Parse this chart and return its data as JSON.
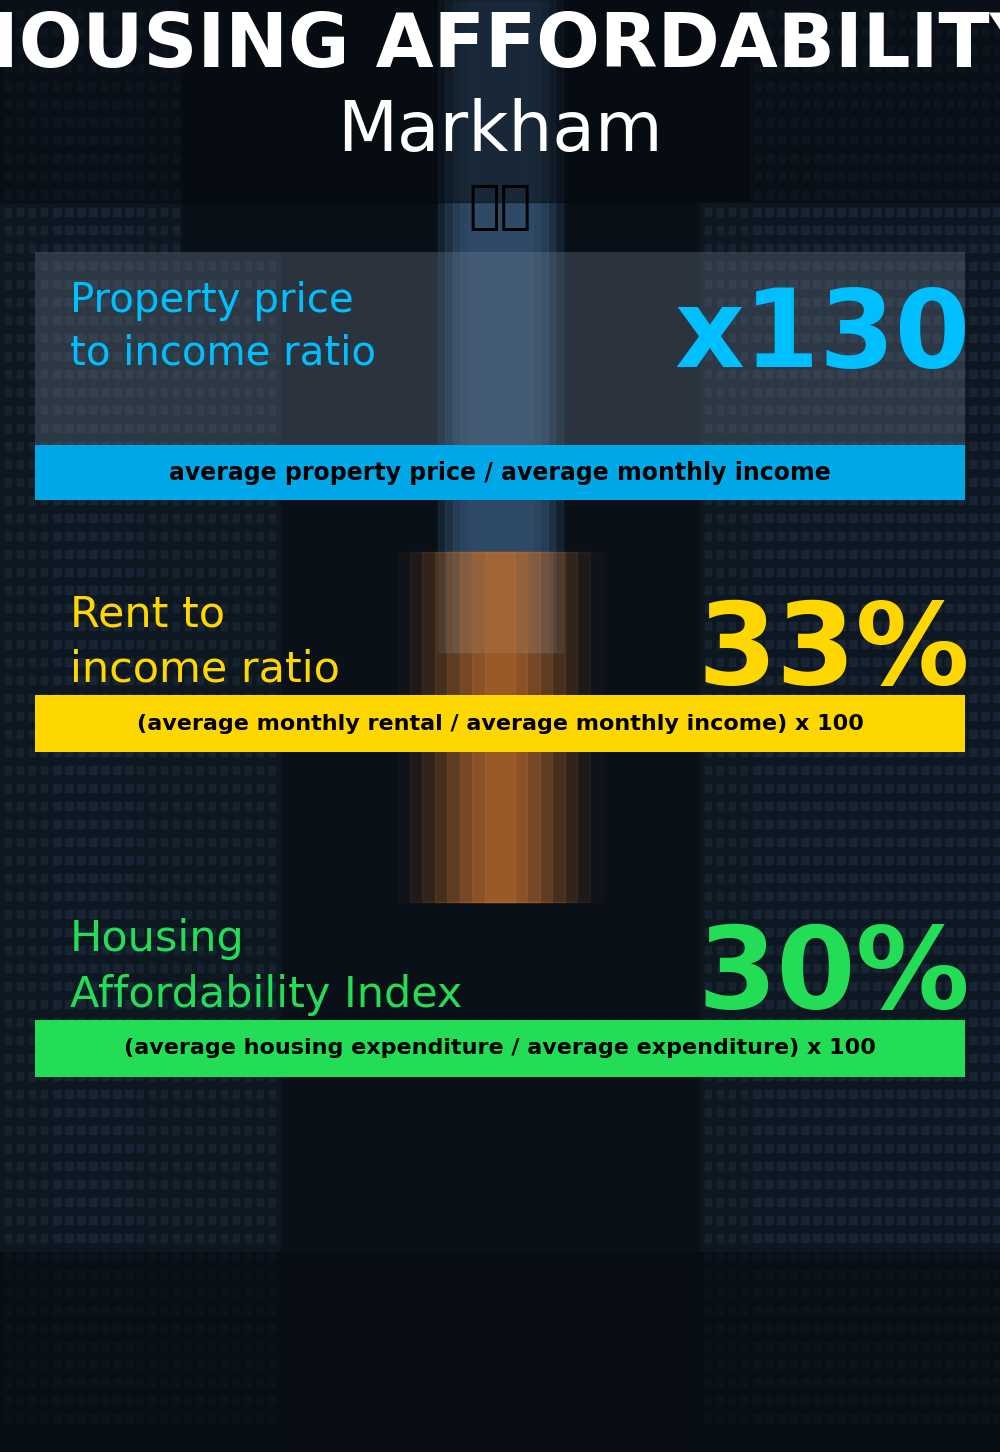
{
  "title_line1": "HOUSING AFFORDABILITY",
  "title_line2": "Markham",
  "bg_color": "#0d1b2a",
  "title1_color": "#ffffff",
  "title2_color": "#ffffff",
  "section1_label": "Property price\nto income ratio",
  "section1_value": "x130",
  "section1_label_color": "#00bfff",
  "section1_value_color": "#00bfff",
  "section1_formula": "average property price / average monthly income",
  "section1_formula_bg": "#00a8e8",
  "section1_formula_color": "#000000",
  "section2_label": "Rent to\nincome ratio",
  "section2_value": "33%",
  "section2_label_color": "#FFD700",
  "section2_value_color": "#FFD700",
  "section2_formula": "(average monthly rental / average monthly income) x 100",
  "section2_formula_bg": "#FFD700",
  "section2_formula_color": "#000000",
  "section3_label": "Housing\nAffordability Index",
  "section3_value": "30%",
  "section3_label_color": "#22dd55",
  "section3_value_color": "#22dd55",
  "section3_formula": "(average housing expenditure / average expenditure) x 100",
  "section3_formula_bg": "#22dd55",
  "section3_formula_color": "#000000",
  "flag_emoji": "🇨🇦"
}
